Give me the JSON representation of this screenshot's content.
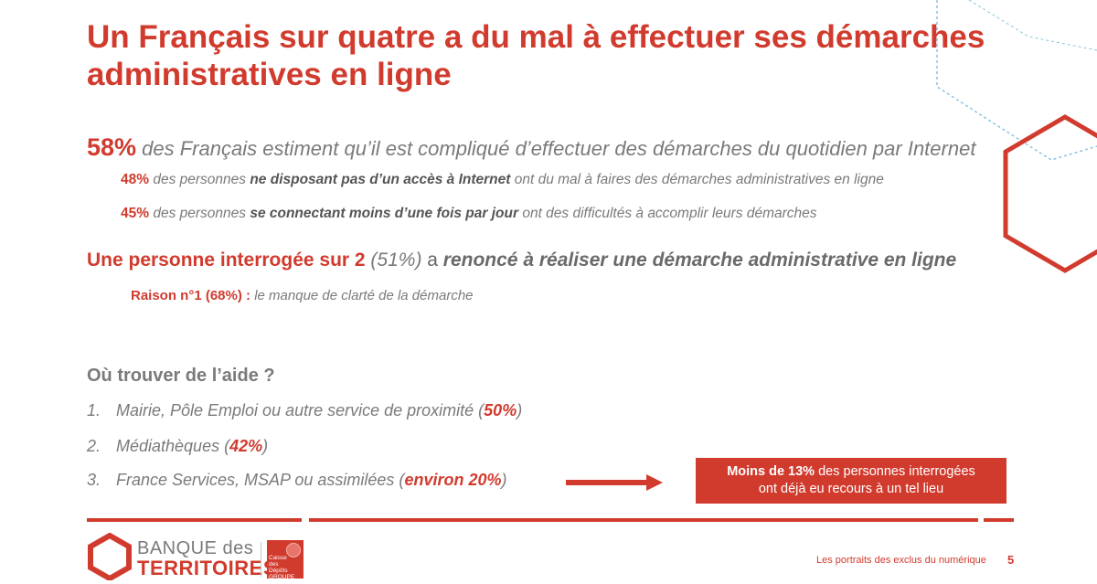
{
  "title": "Un Français sur quatre a du mal à effectuer ses démarches administratives en ligne",
  "stat_main": {
    "pct": "58%",
    "text": " des Français estiment qu’il est compliqué d’effectuer des démarches du quotidien par Internet"
  },
  "sub_stats": [
    {
      "pct": "48%",
      "pre": " des personnes ",
      "emph": "ne disposant pas d’un accès à Internet",
      "post": " ont du mal à faires des démarches administratives en ligne"
    },
    {
      "pct": "45%",
      "pre": " des personnes ",
      "emph": "se connectant moins d’une fois par jour",
      "post": " ont des difficultés à accomplir leurs démarches"
    }
  ],
  "renonce": {
    "lead": "Une personne interrogée sur 2",
    "pct": " (51%) ",
    "verb": "a ",
    "rest": "renoncé à réaliser une démarche administrative en ligne"
  },
  "raison": {
    "label": "Raison n°1 (68%) :",
    "text": " le manque de clarté de la démarche"
  },
  "aide": {
    "title": "Où trouver de l’aide  ?",
    "items": [
      {
        "num": "1.",
        "text": "Mairie, Pôle Emploi ou autre service de proximité (",
        "pct": "50%",
        "close": ")"
      },
      {
        "num": "2.",
        "text": "Médiathèques (",
        "pct": "42%",
        "close": ")"
      },
      {
        "num": "3.",
        "text": "France Services, MSAP ou assimilées (",
        "pct": "environ 20%",
        "close": ")"
      }
    ]
  },
  "callout": {
    "bold": "Moins de 13%",
    "line1_rest": " des personnes interrogées",
    "line2": "ont déjà eu recours à un tel lieu"
  },
  "logo": {
    "line1": "BANQUE des",
    "line2": "TERRITOIRES",
    "cdc": "Caisse des Dépôts GROUPE"
  },
  "footer": {
    "text": "Les portraits des exclus du numérique",
    "page": "5"
  },
  "colors": {
    "accent": "#d13b2e",
    "text_grey": "#7a7a7a",
    "deco_blue": "#8ac3df"
  }
}
